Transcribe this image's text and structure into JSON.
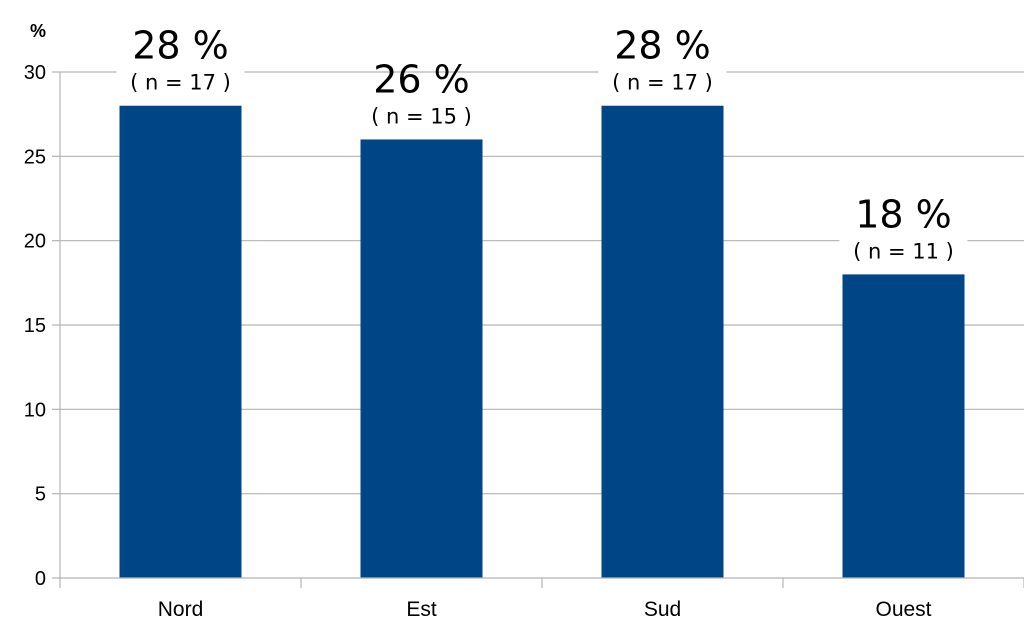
{
  "chart_data": {
    "type": "bar",
    "unit_label": "%",
    "categories": [
      "Nord",
      "Est",
      "Sud",
      "Ouest"
    ],
    "values": [
      28,
      26,
      28,
      18
    ],
    "data_labels": [
      "28 %",
      "26 %",
      "28 %",
      "18 %"
    ],
    "count_labels": [
      "( n = 17 )",
      "( n = 15 )",
      "( n = 17 )",
      "( n = 11 )"
    ],
    "ylim": [
      0,
      30
    ],
    "yticks": [
      0,
      5,
      10,
      15,
      20,
      25,
      30
    ],
    "grid": true,
    "legend": "none",
    "bar_color": "#004586"
  }
}
